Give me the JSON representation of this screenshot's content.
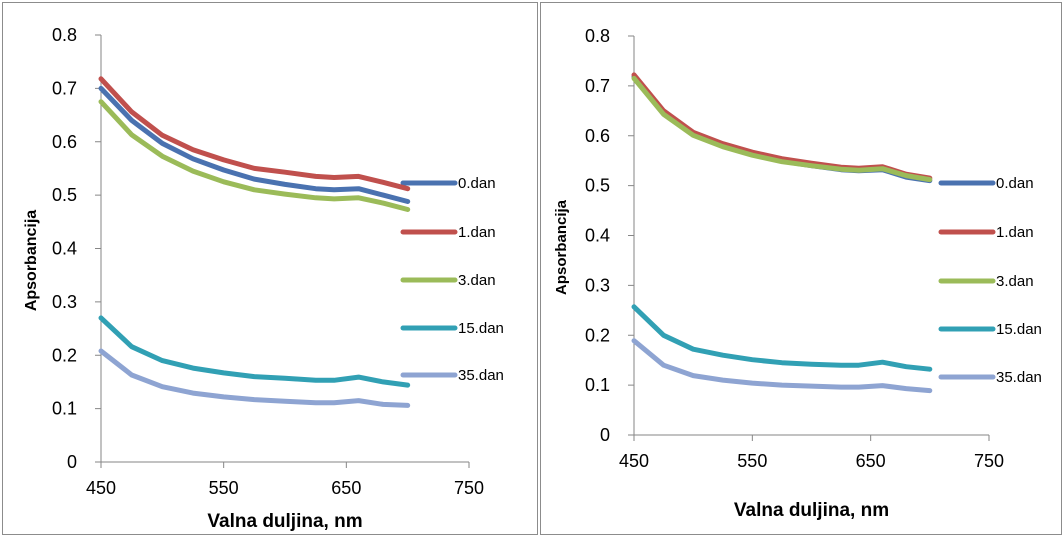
{
  "chart_data": [
    {
      "type": "line",
      "title": "",
      "xlabel": "Valna duljina, nm",
      "ylabel": "Apsorbancija",
      "xlim": [
        450,
        750
      ],
      "ylim": [
        0,
        0.8
      ],
      "x_ticks": [
        "450",
        "550",
        "650",
        "750"
      ],
      "y_ticks": [
        "0",
        "0.1",
        "0.2",
        "0.3",
        "0.4",
        "0.5",
        "0.6",
        "0.7",
        "0.8"
      ],
      "grid": false,
      "legend": "right",
      "x": [
        450,
        475,
        500,
        525,
        550,
        575,
        600,
        625,
        640,
        660,
        680,
        700
      ],
      "series": [
        {
          "name": "0.dan",
          "color": "#4a72b0",
          "values": [
            0.7,
            0.64,
            0.597,
            0.568,
            0.547,
            0.53,
            0.52,
            0.512,
            0.51,
            0.512,
            0.5,
            0.488
          ]
        },
        {
          "name": "1.dan",
          "color": "#c0504d",
          "values": [
            0.718,
            0.656,
            0.612,
            0.585,
            0.566,
            0.55,
            0.543,
            0.535,
            0.533,
            0.535,
            0.524,
            0.512
          ]
        },
        {
          "name": "3.dan",
          "color": "#9bbb59",
          "values": [
            0.675,
            0.613,
            0.573,
            0.545,
            0.525,
            0.51,
            0.502,
            0.495,
            0.493,
            0.495,
            0.485,
            0.473
          ]
        },
        {
          "name": "15.dan",
          "color": "#31a0b4",
          "values": [
            0.27,
            0.216,
            0.19,
            0.176,
            0.167,
            0.16,
            0.157,
            0.153,
            0.153,
            0.159,
            0.15,
            0.144
          ]
        },
        {
          "name": "35.dan",
          "color": "#8ea4d2",
          "values": [
            0.208,
            0.163,
            0.141,
            0.129,
            0.122,
            0.117,
            0.114,
            0.111,
            0.111,
            0.115,
            0.108,
            0.106
          ]
        }
      ]
    },
    {
      "type": "line",
      "title": "",
      "xlabel": "Valna duljina, nm",
      "ylabel": "Apsorbancija",
      "xlim": [
        450,
        750
      ],
      "ylim": [
        0,
        0.8
      ],
      "x_ticks": [
        "450",
        "550",
        "650",
        "750"
      ],
      "y_ticks": [
        "0",
        "0.1",
        "0.2",
        "0.3",
        "0.4",
        "0.5",
        "0.6",
        "0.7",
        "0.8"
      ],
      "grid": false,
      "legend": "right",
      "x": [
        450,
        475,
        500,
        525,
        550,
        575,
        600,
        625,
        640,
        660,
        680,
        700
      ],
      "series": [
        {
          "name": "0.dan",
          "color": "#4a72b0",
          "values": [
            0.718,
            0.645,
            0.603,
            0.58,
            0.563,
            0.549,
            0.54,
            0.532,
            0.53,
            0.532,
            0.517,
            0.51
          ]
        },
        {
          "name": "1.dan",
          "color": "#c0504d",
          "values": [
            0.722,
            0.65,
            0.607,
            0.584,
            0.567,
            0.554,
            0.545,
            0.537,
            0.535,
            0.538,
            0.523,
            0.515
          ]
        },
        {
          "name": "3.dan",
          "color": "#9bbb59",
          "values": [
            0.715,
            0.643,
            0.601,
            0.578,
            0.561,
            0.548,
            0.54,
            0.533,
            0.531,
            0.534,
            0.52,
            0.512
          ]
        },
        {
          "name": "15.dan",
          "color": "#31a0b4",
          "values": [
            0.257,
            0.2,
            0.172,
            0.16,
            0.151,
            0.145,
            0.142,
            0.14,
            0.14,
            0.146,
            0.137,
            0.132
          ]
        },
        {
          "name": "35.dan",
          "color": "#8ea4d2",
          "values": [
            0.189,
            0.14,
            0.119,
            0.11,
            0.104,
            0.1,
            0.098,
            0.096,
            0.096,
            0.099,
            0.093,
            0.089
          ]
        }
      ]
    }
  ]
}
